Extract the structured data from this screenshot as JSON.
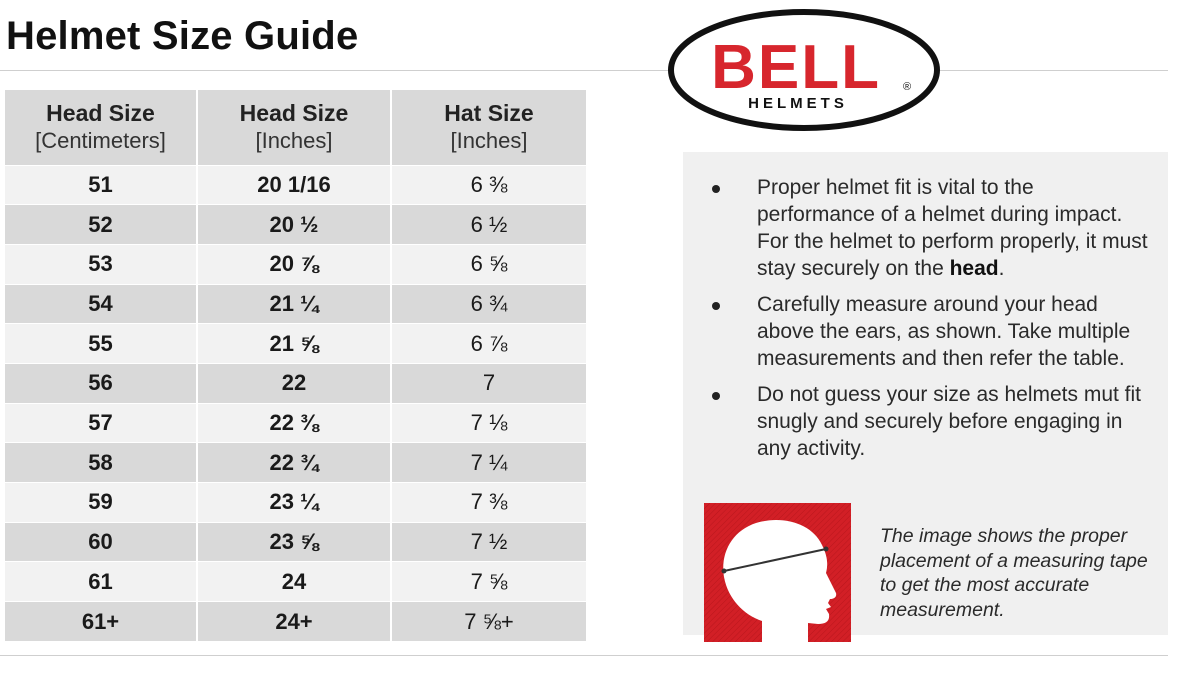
{
  "header": {
    "title": "Helmet Size Guide"
  },
  "logo": {
    "brand": "BELL",
    "subtitle": "HELMETS",
    "mark": "®",
    "brand_color": "#d7262d"
  },
  "table": {
    "columns": [
      {
        "title": "Head Size",
        "unit": "[Centimeters]"
      },
      {
        "title": "Head Size",
        "unit": "[Inches]"
      },
      {
        "title": "Hat Size",
        "unit": "[Inches]"
      }
    ],
    "rows": [
      {
        "cm": "51",
        "inches": "20 1/16",
        "hat": "6 ⅜"
      },
      {
        "cm": "52",
        "inches": "20 ½",
        "hat": "6 ½"
      },
      {
        "cm": "53",
        "inches": "20 ⅞",
        "hat": "6 ⅝"
      },
      {
        "cm": "54",
        "inches": "21 ¼",
        "hat": "6 ¾"
      },
      {
        "cm": "55",
        "inches": "21 ⅝",
        "hat": "6 ⅞"
      },
      {
        "cm": "56",
        "inches": "22",
        "hat": "7"
      },
      {
        "cm": "57",
        "inches": "22 ⅜",
        "hat": "7 ⅛"
      },
      {
        "cm": "58",
        "inches": "22 ¾",
        "hat": "7 ¼"
      },
      {
        "cm": "59",
        "inches": "23 ¼",
        "hat": "7 ⅜"
      },
      {
        "cm": "60",
        "inches": "23 ⅝",
        "hat": "7 ½"
      },
      {
        "cm": "61",
        "inches": "24",
        "hat": "7 ⅝"
      },
      {
        "cm": "61+",
        "inches": "24+",
        "hat": "7 ⅝+"
      }
    ]
  },
  "info": {
    "bullets": [
      {
        "text": "Proper helmet fit is vital to the performance of a helmet during impact. For the helmet to perform properly, it must stay securely on the ",
        "bold": "head",
        "tail": "."
      },
      {
        "text": "Carefully measure around your head above the ears, as shown. Take multiple measurements and then refer the table.",
        "bold": "",
        "tail": ""
      },
      {
        "text": "Do not guess your size as helmets mut fit snugly and securely before engaging in any activity.",
        "bold": "",
        "tail": ""
      }
    ],
    "caption": "The image shows the proper placement of a measuring tape to get the most accurate measurement.",
    "image_icon": "head-measurement-icon",
    "image_color": "#d21f26"
  }
}
